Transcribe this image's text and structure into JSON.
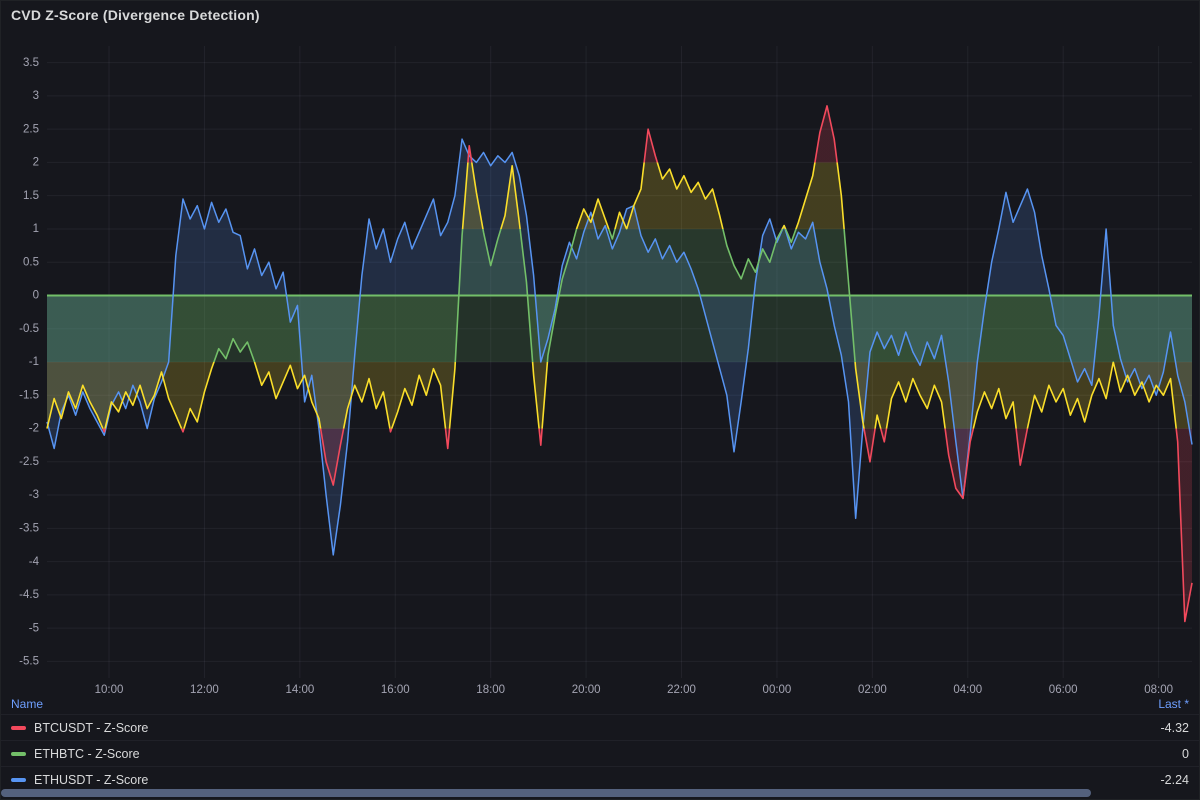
{
  "panel": {
    "title": "CVD Z-Score (Divergence Detection)"
  },
  "legend": {
    "name_header": "Name",
    "last_header": "Last *"
  },
  "chart_data": {
    "type": "line",
    "title": "CVD Z-Score (Divergence Detection)",
    "x_unit": "time-of-day-hours",
    "x_start": 8.7,
    "x_step": 0.15,
    "ylim": [
      -5.75,
      3.75
    ],
    "grid": true,
    "legend_position": "bottom-table",
    "palette": {
      "red": "#F2495C",
      "yellow": "#FADE2A",
      "green": "#73BF69",
      "blue": "#5794F2"
    },
    "value_color_bands": [
      {
        "from": -1,
        "to": 1,
        "color": "#73BF69"
      },
      {
        "from": 1,
        "to": 2,
        "color": "#FADE2A"
      },
      {
        "from": -2,
        "to": -1,
        "color": "#FADE2A"
      },
      {
        "from": 2,
        "to": 3.75,
        "color": "#F2495C"
      },
      {
        "from": -5.75,
        "to": -2,
        "color": "#F2495C"
      }
    ],
    "band": {
      "from": 0,
      "to": -1,
      "color": "#73BF69",
      "opacity": 0.16
    },
    "x_ticks": [
      {
        "t": 10,
        "label": "10:00"
      },
      {
        "t": 12,
        "label": "12:00"
      },
      {
        "t": 14,
        "label": "14:00"
      },
      {
        "t": 16,
        "label": "16:00"
      },
      {
        "t": 18,
        "label": "18:00"
      },
      {
        "t": 20,
        "label": "20:00"
      },
      {
        "t": 22,
        "label": "22:00"
      },
      {
        "t": 24,
        "label": "00:00"
      },
      {
        "t": 26,
        "label": "02:00"
      },
      {
        "t": 28,
        "label": "04:00"
      },
      {
        "t": 30,
        "label": "06:00"
      },
      {
        "t": 32,
        "label": "08:00"
      }
    ],
    "y_ticks": [
      {
        "v": 3.5,
        "label": "3.5"
      },
      {
        "v": 3,
        "label": "3"
      },
      {
        "v": 2.5,
        "label": "2.5"
      },
      {
        "v": 2,
        "label": "2"
      },
      {
        "v": 1.5,
        "label": "1.5"
      },
      {
        "v": 1,
        "label": "1"
      },
      {
        "v": 0.5,
        "label": "0.5"
      },
      {
        "v": 0,
        "label": "0"
      },
      {
        "v": -0.5,
        "label": "-0.5"
      },
      {
        "v": -1,
        "label": "-1"
      },
      {
        "v": -1.5,
        "label": "-1.5"
      },
      {
        "v": -2,
        "label": "-2"
      },
      {
        "v": -2.5,
        "label": "-2.5"
      },
      {
        "v": -3,
        "label": "-3"
      },
      {
        "v": -3.5,
        "label": "-3.5"
      },
      {
        "v": -4,
        "label": "-4"
      },
      {
        "v": -4.5,
        "label": "-4.5"
      },
      {
        "v": -5,
        "label": "-5"
      },
      {
        "v": -5.5,
        "label": "-5.5"
      }
    ],
    "series": [
      {
        "name": "BTCUSDT - Z-Score",
        "legend_color": "#F2495C",
        "color_mode": "by-value-thresholds",
        "fill_opacity": 0.2,
        "last": "-4.32",
        "values": [
          -2.0,
          -1.55,
          -1.85,
          -1.45,
          -1.7,
          -1.35,
          -1.6,
          -1.8,
          -2.05,
          -1.6,
          -1.75,
          -1.45,
          -1.65,
          -1.35,
          -1.7,
          -1.5,
          -1.15,
          -1.55,
          -1.8,
          -2.05,
          -1.7,
          -1.9,
          -1.45,
          -1.1,
          -0.8,
          -0.95,
          -0.65,
          -0.85,
          -0.7,
          -1.0,
          -1.35,
          -1.15,
          -1.55,
          -1.3,
          -1.05,
          -1.4,
          -1.2,
          -1.6,
          -1.85,
          -2.5,
          -2.85,
          -2.25,
          -1.7,
          -1.35,
          -1.6,
          -1.25,
          -1.7,
          -1.45,
          -2.05,
          -1.75,
          -1.4,
          -1.65,
          -1.2,
          -1.5,
          -1.1,
          -1.35,
          -2.3,
          -1.1,
          0.9,
          2.25,
          1.55,
          0.95,
          0.45,
          0.85,
          1.2,
          1.95,
          1.1,
          0.2,
          -1.2,
          -2.25,
          -0.9,
          -0.3,
          0.25,
          0.6,
          1.0,
          1.3,
          1.1,
          1.45,
          1.15,
          0.85,
          1.25,
          1.0,
          1.35,
          1.6,
          2.5,
          2.1,
          1.75,
          1.9,
          1.6,
          1.8,
          1.55,
          1.7,
          1.45,
          1.6,
          1.2,
          0.75,
          0.45,
          0.25,
          0.55,
          0.35,
          0.7,
          0.5,
          0.85,
          1.05,
          0.8,
          1.1,
          1.45,
          1.8,
          2.45,
          2.85,
          2.35,
          1.5,
          0.2,
          -1.1,
          -1.9,
          -2.5,
          -1.8,
          -2.2,
          -1.55,
          -1.3,
          -1.6,
          -1.25,
          -1.5,
          -1.7,
          -1.35,
          -1.6,
          -2.4,
          -2.9,
          -3.05,
          -2.2,
          -1.75,
          -1.45,
          -1.7,
          -1.4,
          -1.85,
          -1.6,
          -2.55,
          -2.0,
          -1.5,
          -1.75,
          -1.35,
          -1.6,
          -1.4,
          -1.8,
          -1.55,
          -1.9,
          -1.5,
          -1.25,
          -1.55,
          -1.0,
          -1.45,
          -1.2,
          -1.5,
          -1.3,
          -1.6,
          -1.35,
          -1.5,
          -1.25,
          -2.2,
          -4.9,
          -4.32
        ]
      },
      {
        "name": "ETHBTC - Z-Score",
        "legend_color": "#73BF69",
        "color": "#73BF69",
        "constant": 0,
        "last": "0"
      },
      {
        "name": "ETHUSDT - Z-Score",
        "legend_color": "#5794F2",
        "color": "#5794F2",
        "fill_opacity": 0.18,
        "last": "-2.24",
        "values": [
          -1.9,
          -2.3,
          -1.75,
          -1.5,
          -1.8,
          -1.45,
          -1.7,
          -1.9,
          -2.1,
          -1.65,
          -1.45,
          -1.7,
          -1.35,
          -1.6,
          -2.0,
          -1.55,
          -1.3,
          -1.0,
          0.6,
          1.45,
          1.15,
          1.35,
          1.0,
          1.4,
          1.1,
          1.3,
          0.95,
          0.9,
          0.4,
          0.7,
          0.3,
          0.5,
          0.1,
          0.35,
          -0.4,
          -0.15,
          -1.6,
          -1.2,
          -2.0,
          -3.0,
          -3.9,
          -3.15,
          -2.2,
          -0.9,
          0.3,
          1.15,
          0.7,
          1.0,
          0.5,
          0.85,
          1.1,
          0.7,
          0.95,
          1.2,
          1.45,
          0.9,
          1.1,
          1.5,
          2.35,
          2.1,
          2.0,
          2.15,
          1.95,
          2.1,
          2.0,
          2.15,
          1.8,
          1.2,
          0.3,
          -1.0,
          -0.65,
          -0.2,
          0.45,
          0.8,
          0.55,
          0.95,
          1.25,
          0.85,
          1.05,
          0.7,
          0.95,
          1.3,
          1.35,
          0.9,
          0.65,
          0.85,
          0.55,
          0.75,
          0.5,
          0.65,
          0.4,
          0.1,
          -0.3,
          -0.7,
          -1.1,
          -1.5,
          -2.35,
          -1.6,
          -0.8,
          0.2,
          0.9,
          1.15,
          0.8,
          1.05,
          0.7,
          0.95,
          0.85,
          1.1,
          0.5,
          0.1,
          -0.45,
          -0.9,
          -1.6,
          -3.35,
          -2.0,
          -0.85,
          -0.55,
          -0.8,
          -0.6,
          -0.9,
          -0.55,
          -0.85,
          -1.05,
          -0.7,
          -0.95,
          -0.6,
          -1.3,
          -2.2,
          -3.05,
          -2.1,
          -1.0,
          -0.2,
          0.5,
          1.0,
          1.55,
          1.1,
          1.35,
          1.6,
          1.25,
          0.6,
          0.1,
          -0.45,
          -0.6,
          -0.95,
          -1.3,
          -1.1,
          -1.35,
          -0.3,
          1.0,
          -0.45,
          -0.95,
          -1.3,
          -1.1,
          -1.4,
          -1.2,
          -1.5,
          -1.15,
          -0.55,
          -1.2,
          -1.6,
          -2.24
        ]
      }
    ]
  }
}
